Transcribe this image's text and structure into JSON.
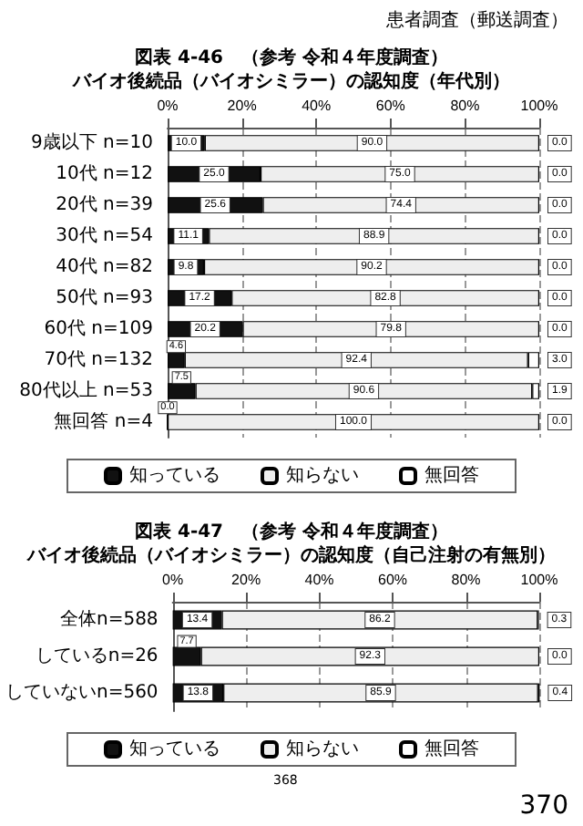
{
  "chart_data": [
    {
      "type": "bar",
      "orientation": "horizontal",
      "stacked": true,
      "title": "図表 4-46　（参考 令和４年度調査）",
      "subtitle": "バイオ後続品（バイオシミラー）の認知度（年代別）",
      "annotations": [
        "患者調査（郵送調査）"
      ],
      "categories": [
        "9歳以下 n=10",
        "10代 n=12",
        "20代 n=39",
        "30代 n=54",
        "40代 n=82",
        "50代 n=93",
        "60代 n=109",
        "70代 n=132",
        "80代以上 n=53",
        "無回答 n=4"
      ],
      "series": [
        {
          "name": "知っている",
          "color": "#111111",
          "values": [
            10.0,
            25.0,
            25.6,
            11.1,
            9.8,
            17.2,
            20.2,
            4.6,
            7.5,
            0.0
          ],
          "value_labels": [
            "10.0",
            "25.0",
            "25.6",
            "11.1",
            "9.8",
            "17.2",
            "20.2",
            "4.6",
            "7.5",
            "0.0"
          ]
        },
        {
          "name": "知らない",
          "color": "#eeeeee",
          "values": [
            90.0,
            75.0,
            74.4,
            88.9,
            90.2,
            82.8,
            79.8,
            92.4,
            90.6,
            100.0
          ],
          "value_labels": [
            "90.0",
            "75.0",
            "74.4",
            "88.9",
            "90.2",
            "82.8",
            "79.8",
            "92.4",
            "90.6",
            "100.0"
          ]
        },
        {
          "name": "無回答",
          "color": "#ffffff",
          "values": [
            0.0,
            0.0,
            0.0,
            0.0,
            0.0,
            0.0,
            0.0,
            3.0,
            1.9,
            0.0
          ],
          "value_labels": [
            "0.0",
            "0.0",
            "0.0",
            "0.0",
            "0.0",
            "0.0",
            "0.0",
            "3.0",
            "1.9",
            "0.0"
          ]
        }
      ],
      "xlim": [
        0,
        100
      ],
      "xticks": [
        {
          "value": 0,
          "label": "0%"
        },
        {
          "value": 20,
          "label": "20%"
        },
        {
          "value": 40,
          "label": "40%"
        },
        {
          "value": 60,
          "label": "60%"
        },
        {
          "value": 80,
          "label": "80%"
        },
        {
          "value": 100,
          "label": "100%"
        }
      ],
      "grid": "x",
      "legend": "bottom"
    },
    {
      "type": "bar",
      "orientation": "horizontal",
      "stacked": true,
      "title": "図表 4-47　（参考 令和４年度調査）",
      "subtitle": "バイオ後続品（バイオシミラー）の認知度（自己注射の有無別）",
      "annotations": [
        "368",
        "370"
      ],
      "categories": [
        "全体n=588",
        "しているn=26",
        "していないn=560"
      ],
      "series": [
        {
          "name": "知っている",
          "color": "#111111",
          "values": [
            13.4,
            7.7,
            13.8
          ],
          "value_labels": [
            "13.4",
            "7.7",
            "13.8"
          ]
        },
        {
          "name": "知らない",
          "color": "#eeeeee",
          "values": [
            86.2,
            92.3,
            85.9
          ],
          "value_labels": [
            "86.2",
            "92.3",
            "85.9"
          ]
        },
        {
          "name": "無回答",
          "color": "#ffffff",
          "values": [
            0.3,
            0.0,
            0.4
          ],
          "value_labels": [
            "0.3",
            "0.0",
            "0.4"
          ]
        }
      ],
      "xlim": [
        0,
        100
      ],
      "xticks": [
        {
          "value": 0,
          "label": "0%"
        },
        {
          "value": 20,
          "label": "20%"
        },
        {
          "value": 40,
          "label": "40%"
        },
        {
          "value": 60,
          "label": "60%"
        },
        {
          "value": 80,
          "label": "80%"
        },
        {
          "value": 100,
          "label": "100%"
        }
      ],
      "grid": "x",
      "legend": "bottom"
    }
  ]
}
